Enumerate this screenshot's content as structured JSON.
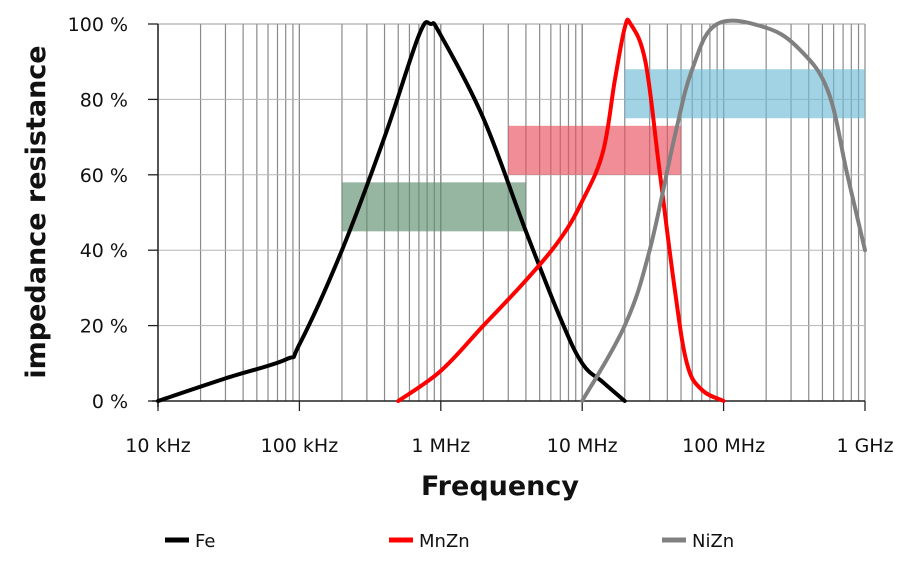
{
  "chart_data": {
    "type": "line",
    "title": "",
    "xlabel": "Frequency",
    "ylabel": "impedance resistance",
    "xscale": "log",
    "xlim_hz": [
      10000,
      1000000000
    ],
    "ylim": [
      0,
      100
    ],
    "x_tick_labels": [
      "10 kHz",
      "100 kHz",
      "1 MHz",
      "10 MHz",
      "100 MHz",
      "1 GHz"
    ],
    "y_tick_labels": [
      "0 %",
      "20 %",
      "40 %",
      "60 %",
      "80 %",
      "100 %"
    ],
    "y_ticks": [
      0,
      20,
      40,
      60,
      80,
      100
    ],
    "grid": "log minor vertical + major horizontal",
    "legend_position": "bottom",
    "series": [
      {
        "name": "Fe",
        "color": "#000000",
        "points_hz_pct": [
          [
            10000,
            0
          ],
          [
            30000,
            6
          ],
          [
            80000,
            11
          ],
          [
            100000,
            15
          ],
          [
            200000,
            40
          ],
          [
            400000,
            70
          ],
          [
            700000,
            97
          ],
          [
            850000,
            100
          ],
          [
            1000000,
            97
          ],
          [
            2000000,
            75
          ],
          [
            4000000,
            45
          ],
          [
            7000000,
            22
          ],
          [
            10000000,
            10
          ],
          [
            14000000,
            5
          ],
          [
            20000000,
            0
          ]
        ]
      },
      {
        "name": "MnZn",
        "color": "#ff0000",
        "points_hz_pct": [
          [
            500000,
            0
          ],
          [
            1000000,
            8
          ],
          [
            2000000,
            20
          ],
          [
            4000000,
            32
          ],
          [
            7000000,
            43
          ],
          [
            10000000,
            53
          ],
          [
            14000000,
            66
          ],
          [
            17000000,
            85
          ],
          [
            20000000,
            99
          ],
          [
            22000000,
            100
          ],
          [
            28000000,
            90
          ],
          [
            35000000,
            62
          ],
          [
            45000000,
            30
          ],
          [
            55000000,
            10
          ],
          [
            70000000,
            3
          ],
          [
            100000000,
            0
          ]
        ]
      },
      {
        "name": "NiZn",
        "color": "#808080",
        "points_hz_pct": [
          [
            10000000,
            0
          ],
          [
            20000000,
            20
          ],
          [
            30000000,
            40
          ],
          [
            45000000,
            70
          ],
          [
            60000000,
            88
          ],
          [
            90000000,
            100
          ],
          [
            200000000,
            99
          ],
          [
            350000000,
            93
          ],
          [
            550000000,
            82
          ],
          [
            750000000,
            60
          ],
          [
            1000000000,
            40
          ]
        ]
      }
    ],
    "bands": [
      {
        "name": "Fe",
        "color": "#5e8f6e",
        "x_hz": [
          200000,
          4000000
        ],
        "y_pct": [
          45,
          58
        ]
      },
      {
        "name": "MnZn",
        "color": "#e8505d",
        "x_hz": [
          3000000,
          50000000
        ],
        "y_pct": [
          60,
          73
        ]
      },
      {
        "name": "NiZn",
        "color": "#6ebcd5",
        "x_hz": [
          20000000,
          1000000000
        ],
        "y_pct": [
          75,
          88
        ]
      }
    ]
  }
}
